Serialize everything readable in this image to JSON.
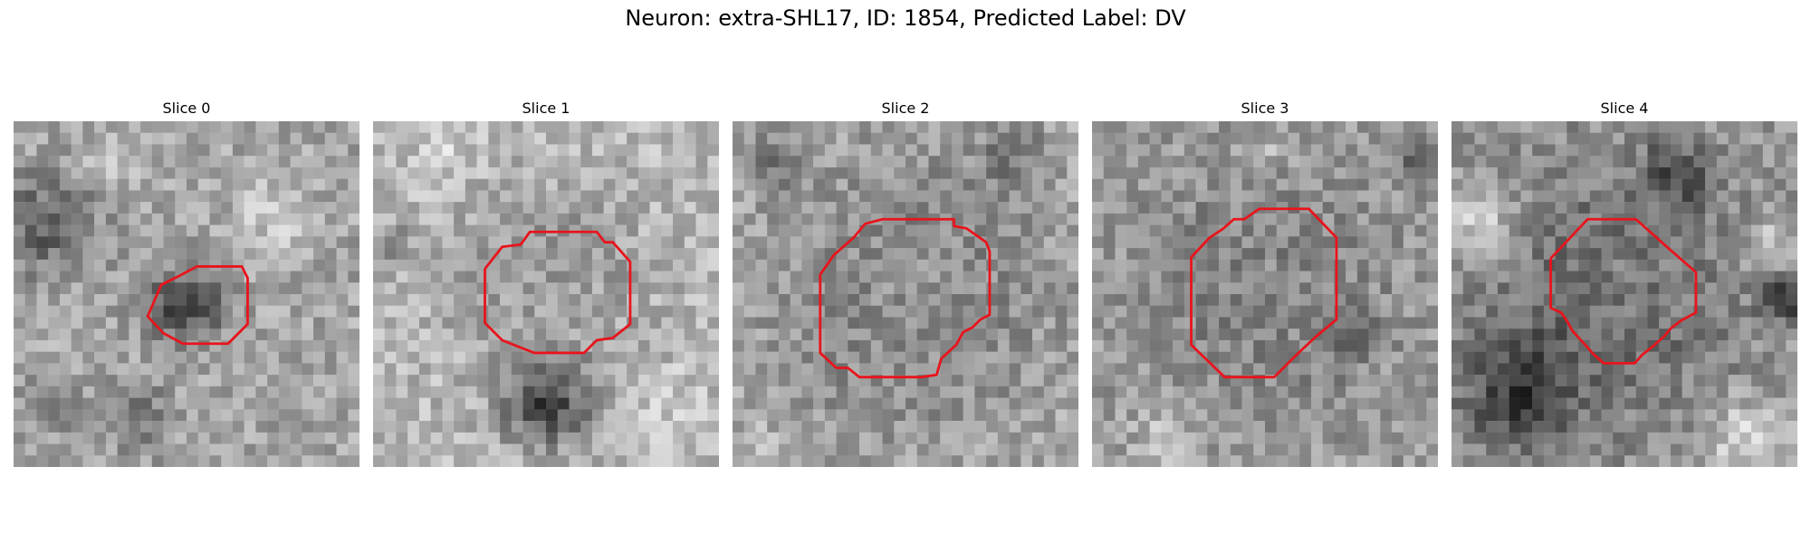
{
  "figure": {
    "title": "Neuron: extra-SHL17, ID: 1854, Predicted Label: DV",
    "contour_color": "#e8141c",
    "grid_size": 30
  },
  "panels": [
    {
      "title": "Slice 0",
      "seed": 11,
      "base_gray": 165,
      "dark_blobs": [
        [
          2.5,
          8.5,
          4.5,
          70
        ],
        [
          14.5,
          15.5,
          3.5,
          100
        ],
        [
          10,
          25,
          3,
          50
        ],
        [
          3,
          24,
          2.5,
          45
        ]
      ],
      "light_blobs": [
        [
          22,
          8,
          4,
          30
        ],
        [
          8,
          3,
          3,
          25
        ]
      ],
      "contour": [
        [
          11.6,
          17.0
        ],
        [
          12.8,
          14.2
        ],
        [
          14.4,
          13.4
        ],
        [
          15.9,
          12.6
        ],
        [
          19.8,
          12.6
        ],
        [
          20.3,
          13.6
        ],
        [
          20.3,
          17.6
        ],
        [
          18.6,
          19.3
        ],
        [
          14.7,
          19.3
        ],
        [
          13.0,
          18.4
        ],
        [
          11.6,
          16.9
        ]
      ]
    },
    {
      "title": "Slice 1",
      "seed": 23,
      "base_gray": 185,
      "dark_blobs": [
        [
          14.5,
          13.5,
          8.5,
          45
        ],
        [
          14.5,
          24,
          4,
          110
        ],
        [
          1,
          10,
          2,
          40
        ]
      ],
      "light_blobs": [
        [
          14.5,
          15,
          5,
          20
        ],
        [
          6,
          2,
          3,
          20
        ],
        [
          25,
          24,
          3,
          20
        ]
      ],
      "contour": [
        [
          9.7,
          12.8
        ],
        [
          11.2,
          10.9
        ],
        [
          12.8,
          10.7
        ],
        [
          13.6,
          9.6
        ],
        [
          19.4,
          9.6
        ],
        [
          20.1,
          10.5
        ],
        [
          20.8,
          10.5
        ],
        [
          22.3,
          12.2
        ],
        [
          22.3,
          17.6
        ],
        [
          20.8,
          18.8
        ],
        [
          19.4,
          19.0
        ],
        [
          18.3,
          20.1
        ],
        [
          14.0,
          20.1
        ],
        [
          12.7,
          19.6
        ],
        [
          11.2,
          19.0
        ],
        [
          9.7,
          17.5
        ],
        [
          9.7,
          12.8
        ]
      ]
    },
    {
      "title": "Slice 2",
      "seed": 37,
      "base_gray": 170,
      "dark_blobs": [
        [
          15,
          14.5,
          11,
          95
        ],
        [
          3,
          3,
          2.5,
          40
        ],
        [
          24,
          2,
          3,
          50
        ]
      ],
      "light_blobs": [
        [
          15,
          14.5,
          8.2,
          70
        ],
        [
          2,
          28,
          2.5,
          25
        ]
      ],
      "contour": [
        [
          7.6,
          13.3
        ],
        [
          8.8,
          11.6
        ],
        [
          10.5,
          10.1
        ],
        [
          11.5,
          8.9
        ],
        [
          13.0,
          8.5
        ],
        [
          13.0,
          8.5
        ],
        [
          19.2,
          8.5
        ],
        [
          19.2,
          9.1
        ],
        [
          20.3,
          9.3
        ],
        [
          22.0,
          10.5
        ],
        [
          22.3,
          11.3
        ],
        [
          22.3,
          16.8
        ],
        [
          21.5,
          17.2
        ],
        [
          20.8,
          17.9
        ],
        [
          20.0,
          18.3
        ],
        [
          19.4,
          19.4
        ],
        [
          18.1,
          20.6
        ],
        [
          17.7,
          22.0
        ],
        [
          16.4,
          22.2
        ],
        [
          11.0,
          22.2
        ],
        [
          10.0,
          21.4
        ],
        [
          9.0,
          21.4
        ],
        [
          7.6,
          20.1
        ],
        [
          7.6,
          13.3
        ]
      ]
    },
    {
      "title": "Slice 3",
      "seed": 53,
      "base_gray": 160,
      "dark_blobs": [
        [
          14.5,
          14.5,
          11,
          55
        ],
        [
          28,
          3,
          2.5,
          55
        ],
        [
          22,
          18,
          2,
          45
        ]
      ],
      "light_blobs": [
        [
          14.5,
          14.5,
          7.5,
          30
        ],
        [
          6,
          27,
          3,
          35
        ],
        [
          15,
          2,
          2,
          30
        ]
      ],
      "contour": [
        [
          8.6,
          11.8
        ],
        [
          10.2,
          10.1
        ],
        [
          11.4,
          9.3
        ],
        [
          12.3,
          8.5
        ],
        [
          13.2,
          8.5
        ],
        [
          14.5,
          7.6
        ],
        [
          18.8,
          7.6
        ],
        [
          21.2,
          10.1
        ],
        [
          21.2,
          17.2
        ],
        [
          19.4,
          18.7
        ],
        [
          17.7,
          20.3
        ],
        [
          15.8,
          22.2
        ],
        [
          11.5,
          22.2
        ],
        [
          8.6,
          19.4
        ],
        [
          8.6,
          11.8
        ]
      ]
    },
    {
      "title": "Slice 4",
      "seed": 71,
      "base_gray": 150,
      "dark_blobs": [
        [
          13.5,
          14.5,
          10,
          75
        ],
        [
          5,
          23,
          5,
          85
        ],
        [
          19,
          4,
          3,
          70
        ],
        [
          28.5,
          15,
          2,
          90
        ]
      ],
      "light_blobs": [
        [
          14,
          14,
          6.5,
          45
        ],
        [
          2,
          8,
          3.5,
          60
        ],
        [
          25,
          27,
          4,
          60
        ],
        [
          27,
          10,
          2.5,
          45
        ]
      ],
      "contour": [
        [
          8.6,
          11.9
        ],
        [
          11.8,
          8.5
        ],
        [
          16.0,
          8.5
        ],
        [
          18.9,
          11.1
        ],
        [
          21.2,
          13.1
        ],
        [
          21.2,
          16.6
        ],
        [
          19.9,
          17.3
        ],
        [
          19.0,
          18.0
        ],
        [
          18.4,
          18.7
        ],
        [
          17.5,
          19.5
        ],
        [
          16.5,
          20.3
        ],
        [
          15.9,
          21.0
        ],
        [
          14.7,
          21.0
        ],
        [
          13.2,
          21.0
        ],
        [
          12.3,
          20.2
        ],
        [
          11.5,
          19.3
        ],
        [
          10.5,
          18.2
        ],
        [
          10.0,
          17.3
        ],
        [
          9.5,
          16.6
        ],
        [
          8.6,
          16.2
        ],
        [
          8.6,
          11.9
        ]
      ]
    }
  ]
}
